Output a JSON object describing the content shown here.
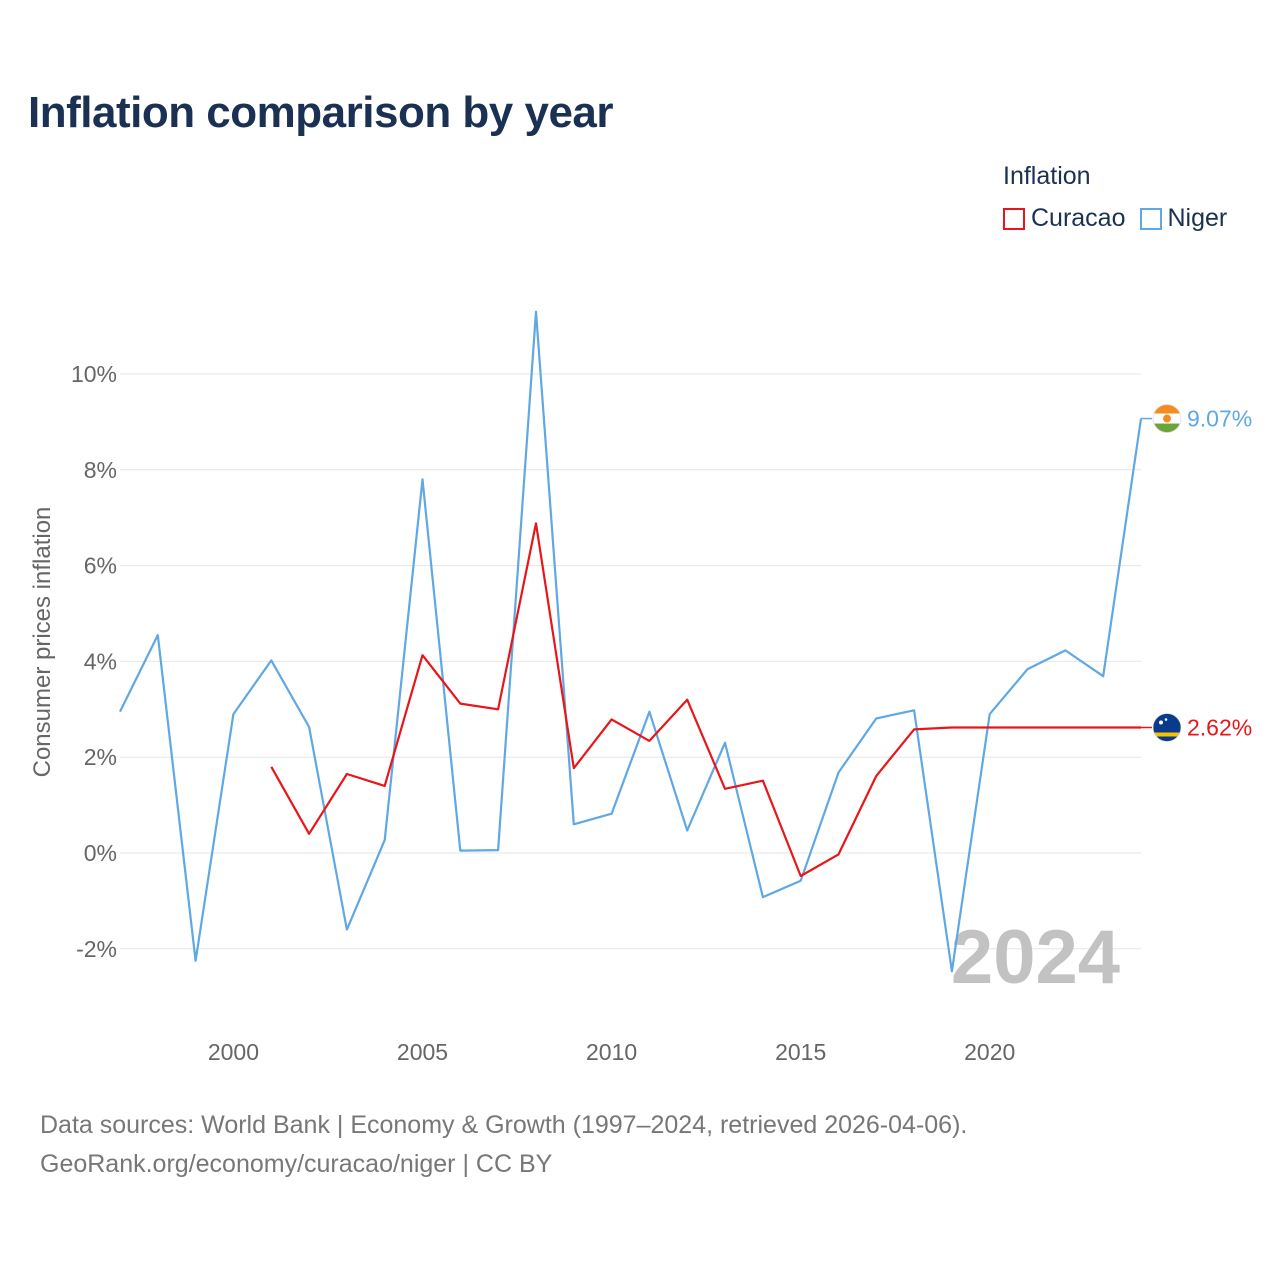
{
  "title": "Inflation comparison by year",
  "legend": {
    "title": "Inflation",
    "items": [
      {
        "name": "Curacao",
        "color": "#e8161b"
      },
      {
        "name": "Niger",
        "color": "#5fa8e3"
      }
    ]
  },
  "source": {
    "line1": "Data sources: World Bank | Economy & Growth (1997–2024, retrieved 2026-04-06).",
    "line2": "GeoRank.org/economy/curacao/niger | CC BY"
  },
  "chart_data": {
    "type": "line",
    "title": "Inflation comparison by year",
    "xlabel": "",
    "ylabel": "Consumer prices inflation",
    "xlim": [
      1997,
      2024
    ],
    "ylim": [
      -3.2,
      11.5
    ],
    "x_ticks": [
      2000,
      2005,
      2010,
      2015,
      2020
    ],
    "y_ticks": [
      -2,
      0,
      2,
      4,
      6,
      8,
      10
    ],
    "y_tick_labels": [
      "-2%",
      "0%",
      "2%",
      "4%",
      "6%",
      "8%",
      "10%"
    ],
    "grid": "horizontal",
    "legend_position": "top-right",
    "watermark_year": "2024",
    "series": [
      {
        "name": "Niger",
        "color": "#5fa8e3",
        "end_label": "9.07%",
        "flag": "niger",
        "x": [
          1997,
          1998,
          1999,
          2000,
          2001,
          2002,
          2003,
          2004,
          2005,
          2006,
          2007,
          2008,
          2009,
          2010,
          2011,
          2012,
          2013,
          2014,
          2015,
          2016,
          2017,
          2018,
          2019,
          2020,
          2021,
          2022,
          2023,
          2024
        ],
        "values": [
          2.95,
          4.55,
          -2.25,
          2.9,
          4.02,
          2.63,
          -1.6,
          0.27,
          7.8,
          0.05,
          0.06,
          11.3,
          0.6,
          0.82,
          2.95,
          0.47,
          2.3,
          -0.92,
          -0.58,
          1.68,
          2.81,
          2.98,
          -2.47,
          2.9,
          3.84,
          4.23,
          3.69,
          9.07
        ]
      },
      {
        "name": "Curacao",
        "color": "#e8161b",
        "end_label": "2.62%",
        "flag": "curacao",
        "x": [
          2001,
          2002,
          2003,
          2004,
          2005,
          2006,
          2007,
          2008,
          2009,
          2010,
          2011,
          2012,
          2013,
          2014,
          2015,
          2016,
          2017,
          2018,
          2019,
          2024
        ],
        "values": [
          1.8,
          0.4,
          1.65,
          1.4,
          4.13,
          3.12,
          3.0,
          6.88,
          1.77,
          2.79,
          2.34,
          3.2,
          1.34,
          1.51,
          -0.48,
          -0.03,
          1.61,
          2.58,
          2.62,
          2.62
        ]
      }
    ]
  }
}
